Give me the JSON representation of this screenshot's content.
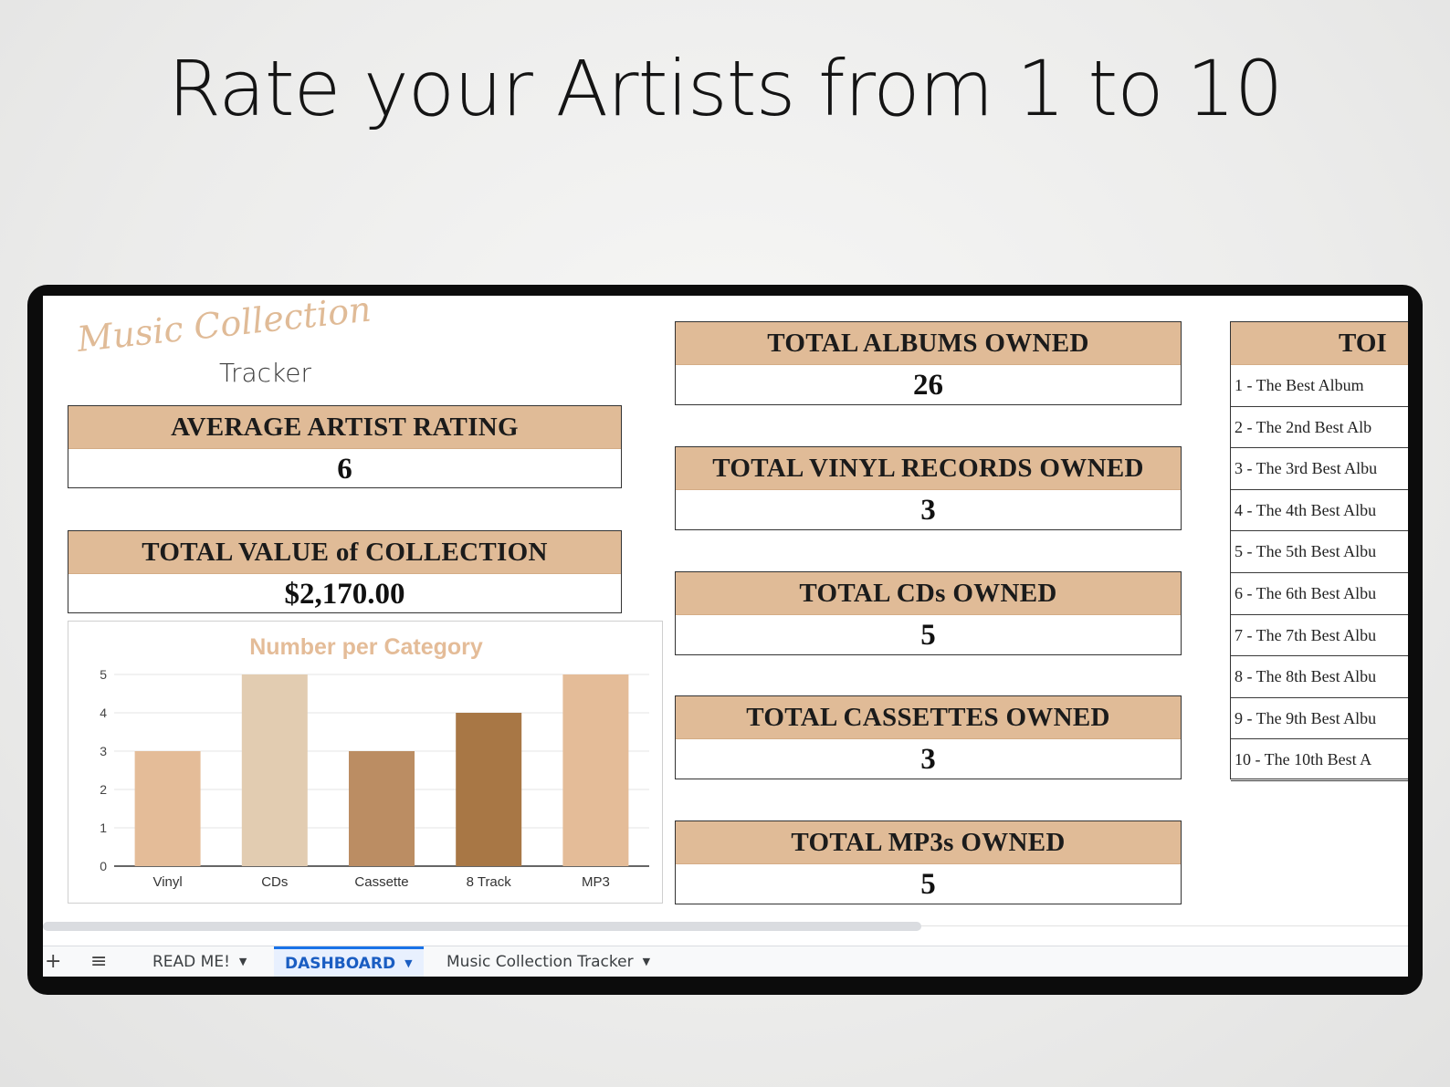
{
  "headline": "Rate your Artists from 1 to 10",
  "logo": {
    "script": "Music Collection",
    "word": "Tracker"
  },
  "stats": {
    "avg_rating": {
      "label": "AVERAGE ARTIST RATING",
      "value": "6"
    },
    "total_value": {
      "label": "TOTAL VALUE of COLLECTION",
      "value": "$2,170.00"
    },
    "albums": {
      "label": "TOTAL ALBUMS OWNED",
      "value": "26"
    },
    "vinyl": {
      "label": "TOTAL VINYL RECORDS OWNED",
      "value": "3"
    },
    "cds": {
      "label": "TOTAL CDs OWNED",
      "value": "5"
    },
    "cassettes": {
      "label": "TOTAL CASSETTES OWNED",
      "value": "3"
    },
    "mp3s": {
      "label": "TOTAL MP3s OWNED",
      "value": "5"
    }
  },
  "top10": {
    "head": "TOI",
    "rows": [
      "1 - The Best Album",
      "2 - The 2nd Best Alb",
      "3 - The 3rd Best Albu",
      "4 - The 4th Best Albu",
      "5 - The 5th Best Albu",
      "6 - The 6th Best Albu",
      "7 - The 7th Best Albu",
      "8 - The 8th Best Albu",
      "9 - The 9th Best Albu",
      "10 - The 10th Best A"
    ]
  },
  "chart_data": {
    "type": "bar",
    "title": "Number per Category",
    "categories": [
      "Vinyl",
      "CDs",
      "Cassette",
      "8 Track",
      "MP3"
    ],
    "values": [
      3,
      5,
      3,
      4,
      5
    ],
    "bar_colors": [
      "#e4bc98",
      "#e2ccb1",
      "#bb8d63",
      "#a87745",
      "#e4bc98"
    ],
    "ylim": [
      0,
      5
    ],
    "yticks": [
      "0",
      "1",
      "2",
      "3",
      "4",
      "5"
    ],
    "grid": true,
    "title_color": "#e4bc98"
  },
  "sheet_tabs": {
    "add_icon": "+",
    "menu_icon": "≡",
    "tabs": [
      {
        "label": "READ ME!",
        "active": false
      },
      {
        "label": "DASHBOARD",
        "active": true
      },
      {
        "label": "Music Collection Tracker",
        "active": false
      }
    ]
  },
  "colors": {
    "accent": "#e0bb97",
    "active_tab": "#1a5dc2"
  }
}
